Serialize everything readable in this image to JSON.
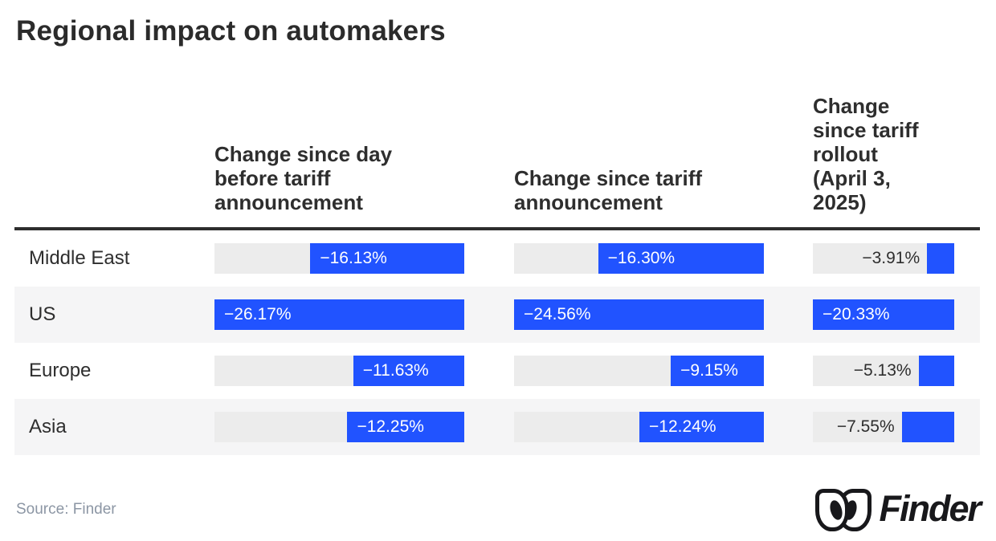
{
  "page": {
    "title": "Regional impact on automakers",
    "source_label": "Source: Finder",
    "brand": "Finder",
    "colors": {
      "bar_blue": "#2153FF",
      "track_gray": "#ECECEC",
      "row_stripe": "#F5F5F6",
      "rule_dark": "#2E2E2E",
      "text_dark": "#2B2B2B",
      "source_gray": "#8C96A4"
    }
  },
  "chart_data": {
    "type": "bar",
    "title": "Regional impact on automakers",
    "orientation": "horizontal",
    "unit": "%",
    "note": "Each column scaled independently; largest magnitude (US) fills the column width; bars right-aligned representing negative change",
    "categories": [
      "Middle East",
      "US",
      "Europe",
      "Asia"
    ],
    "columns": [
      {
        "label": "Change since day before tariff announcement",
        "values": [
          -16.13,
          -26.17,
          -11.63,
          -12.25
        ],
        "labels": [
          "−16.13%",
          "−26.17%",
          "−11.63%",
          "−12.25%"
        ]
      },
      {
        "label": "Change since tariff announcement",
        "values": [
          -16.3,
          -24.56,
          -9.15,
          -12.24
        ],
        "labels": [
          "−16.30%",
          "−24.56%",
          "−9.15%",
          "−12.24%"
        ]
      },
      {
        "label": "Change since tariff rollout (April 3, 2025)",
        "values": [
          -3.91,
          -20.33,
          -5.13,
          -7.55
        ],
        "labels": [
          "−3.91%",
          "−20.33%",
          "−5.13%",
          "−7.55%"
        ]
      }
    ],
    "legend": "none",
    "grid": "off"
  }
}
